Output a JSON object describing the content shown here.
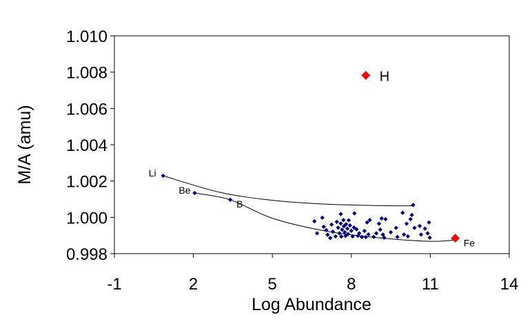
{
  "chart_data": {
    "type": "scatter",
    "xlabel": "Log Abundance",
    "ylabel": "M/A (amu)",
    "xlim": [
      -1,
      14
    ],
    "ylim": [
      0.998,
      1.01
    ],
    "xticks": [
      "-1",
      "2",
      "5",
      "8",
      "11",
      "14"
    ],
    "yticks": [
      "0.998",
      "1.000",
      "1.002",
      "1.004",
      "1.006",
      "1.008",
      "1.010"
    ],
    "grid": false,
    "colors": {
      "points": "#0a0a80",
      "highlight": "#e8120c",
      "curve": "#000000",
      "frame": "#000000"
    },
    "labeled_points": [
      {
        "label": "Li",
        "x": 0.85,
        "y": 1.00229,
        "marker": "small",
        "color": "#0a0a80"
      },
      {
        "label": "Be",
        "x": 2.05,
        "y": 1.00134,
        "marker": "small",
        "color": "#0a0a80"
      },
      {
        "label": "B",
        "x": 3.4,
        "y": 1.00097,
        "marker": "small",
        "color": "#0a0a80"
      },
      {
        "label": "H",
        "x": 8.55,
        "y": 1.00782,
        "marker": "large",
        "color": "#e8120c"
      },
      {
        "label": "Fe",
        "x": 11.95,
        "y": 0.99885,
        "marker": "large",
        "color": "#e8120c"
      }
    ],
    "points": [
      [
        6.6,
        0.99978
      ],
      [
        6.7,
        0.99912
      ],
      [
        6.9,
        0.99998
      ],
      [
        6.95,
        0.99948
      ],
      [
        7.05,
        0.9993
      ],
      [
        7.1,
        0.99904
      ],
      [
        7.2,
        0.99886
      ],
      [
        7.25,
        0.9996
      ],
      [
        7.3,
        0.99921
      ],
      [
        7.4,
        0.99895
      ],
      [
        7.45,
        0.99975
      ],
      [
        7.5,
        0.99943
      ],
      [
        7.55,
        0.99912
      ],
      [
        7.6,
        0.99966
      ],
      [
        7.62,
        0.99894
      ],
      [
        7.65,
        0.99932
      ],
      [
        7.7,
        0.99985
      ],
      [
        7.72,
        0.99951
      ],
      [
        7.75,
        0.99918
      ],
      [
        7.78,
        0.99898
      ],
      [
        7.6,
        1.00018
      ],
      [
        7.8,
        0.99962
      ],
      [
        7.85,
        0.99938
      ],
      [
        7.88,
        0.99908
      ],
      [
        7.9,
        0.99984
      ],
      [
        7.95,
        0.99955
      ],
      [
        8.0,
        0.99926
      ],
      [
        8.05,
        0.99895
      ],
      [
        8.1,
        0.99944
      ],
      [
        8.12,
        1.00022
      ],
      [
        8.2,
        0.99934
      ],
      [
        8.25,
        0.99898
      ],
      [
        8.3,
        0.99912
      ],
      [
        8.4,
        0.99892
      ],
      [
        8.5,
        0.99925
      ],
      [
        8.55,
        0.99891
      ],
      [
        8.6,
        0.99972
      ],
      [
        8.65,
        0.99906
      ],
      [
        8.7,
        0.99985
      ],
      [
        8.85,
        0.99892
      ],
      [
        8.95,
        0.99912
      ],
      [
        9.05,
        0.99965
      ],
      [
        9.1,
        0.99932
      ],
      [
        9.15,
        0.99994
      ],
      [
        9.2,
        0.99905
      ],
      [
        9.25,
        0.99888
      ],
      [
        9.3,
        0.9999
      ],
      [
        9.5,
        0.99918
      ],
      [
        9.7,
        0.99942
      ],
      [
        9.75,
        0.99892
      ],
      [
        9.95,
        1.00025
      ],
      [
        10.0,
        0.99905
      ],
      [
        10.1,
        0.99965
      ],
      [
        10.15,
        0.99895
      ],
      [
        10.25,
        0.9999
      ],
      [
        10.3,
        1.00013
      ],
      [
        10.35,
        1.00068
      ],
      [
        10.4,
        0.99942
      ],
      [
        10.6,
        0.99952
      ],
      [
        10.65,
        0.99905
      ],
      [
        10.8,
        0.99938
      ],
      [
        10.9,
        0.99912
      ],
      [
        10.95,
        0.99972
      ],
      [
        10.98,
        0.99888
      ]
    ],
    "curves": [
      {
        "points": [
          [
            0.85,
            1.00229
          ],
          [
            3.0,
            1.00138
          ],
          [
            5.0,
            1.00094
          ],
          [
            7.0,
            1.00073
          ],
          [
            9.0,
            1.00065
          ],
          [
            10.35,
            1.00063
          ]
        ]
      },
      {
        "points": [
          [
            2.05,
            1.00134
          ],
          [
            3.4,
            1.00097
          ],
          [
            5.0,
            0.99995
          ],
          [
            7.0,
            0.99925
          ],
          [
            9.0,
            0.99888
          ],
          [
            11.0,
            0.99868
          ],
          [
            11.95,
            0.99875
          ]
        ]
      }
    ]
  }
}
